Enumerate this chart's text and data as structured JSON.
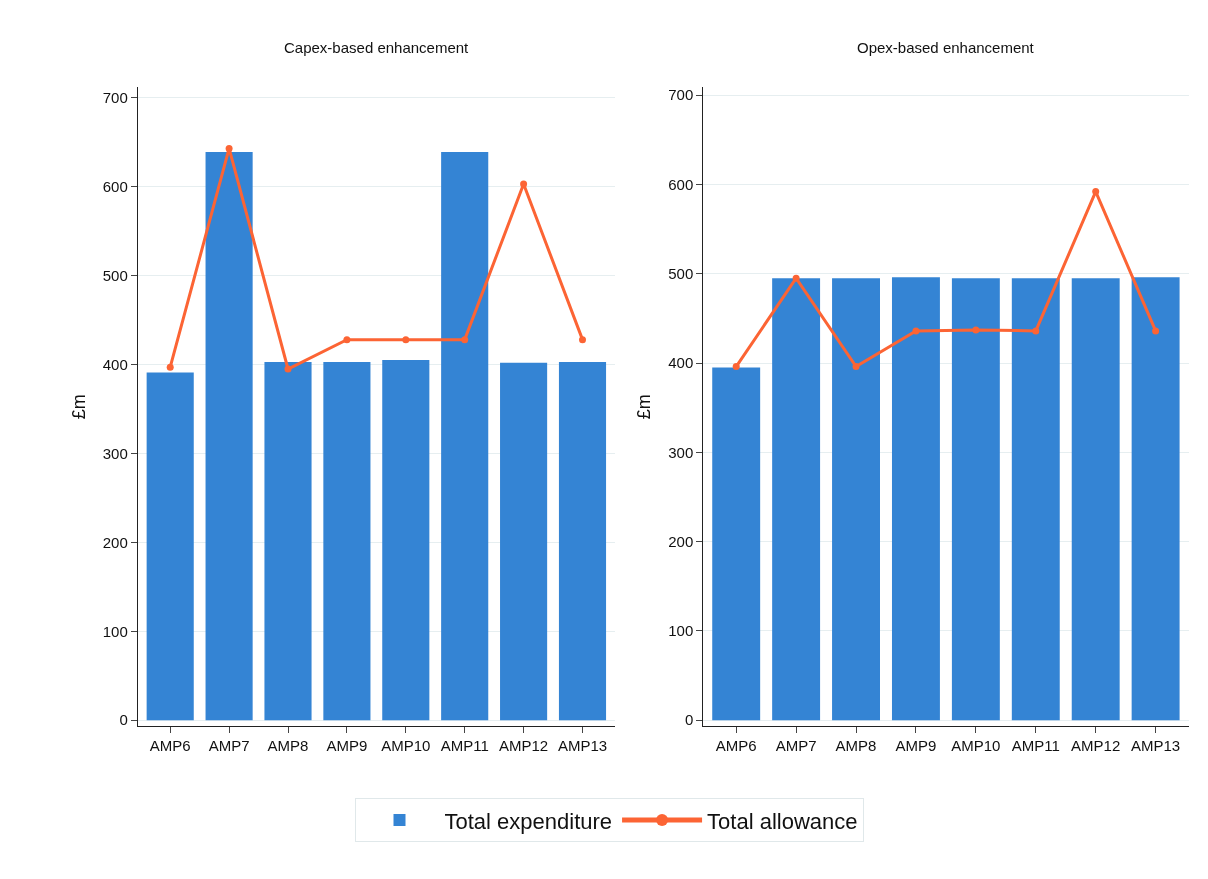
{
  "chart_data": [
    {
      "type": "bar",
      "title": "Capex-based enhancement",
      "ylabel": "£m",
      "categories": [
        "AMP6",
        "AMP7",
        "AMP8",
        "AMP9",
        "AMP10",
        "AMP11",
        "AMP12",
        "AMP13"
      ],
      "series": [
        {
          "name": "Total expenditure",
          "color": "#3484d4",
          "values": [
            391,
            639,
            403,
            403,
            405,
            639,
            402,
            403
          ]
        },
        {
          "name": "Total allowance",
          "type": "line",
          "color": "#fc6434",
          "marker": "circle",
          "values": [
            397,
            643,
            395,
            428,
            428,
            428,
            603,
            428
          ]
        }
      ],
      "ylim": [
        -7,
        712
      ],
      "yticks": [
        0,
        100,
        200,
        300,
        400,
        500,
        600,
        700
      ],
      "grid": "y",
      "legend": "bottom"
    },
    {
      "type": "bar",
      "title": "Opex-based enhancement",
      "ylabel": "£m",
      "categories": [
        "AMP6",
        "AMP7",
        "AMP8",
        "AMP9",
        "AMP10",
        "AMP11",
        "AMP12",
        "AMP13"
      ],
      "series": [
        {
          "name": "Total expenditure",
          "color": "#3484d4",
          "values": [
            395,
            495,
            495,
            496,
            495,
            495,
            495,
            496
          ]
        },
        {
          "name": "Total allowance",
          "type": "line",
          "color": "#fc6434",
          "marker": "circle",
          "values": [
            396,
            495,
            396,
            436,
            437,
            436,
            592,
            436
          ]
        }
      ],
      "ylim": [
        -7,
        709
      ],
      "yticks": [
        0,
        100,
        200,
        300,
        400,
        500,
        600,
        700
      ],
      "grid": "y",
      "legend": "bottom"
    }
  ]
}
